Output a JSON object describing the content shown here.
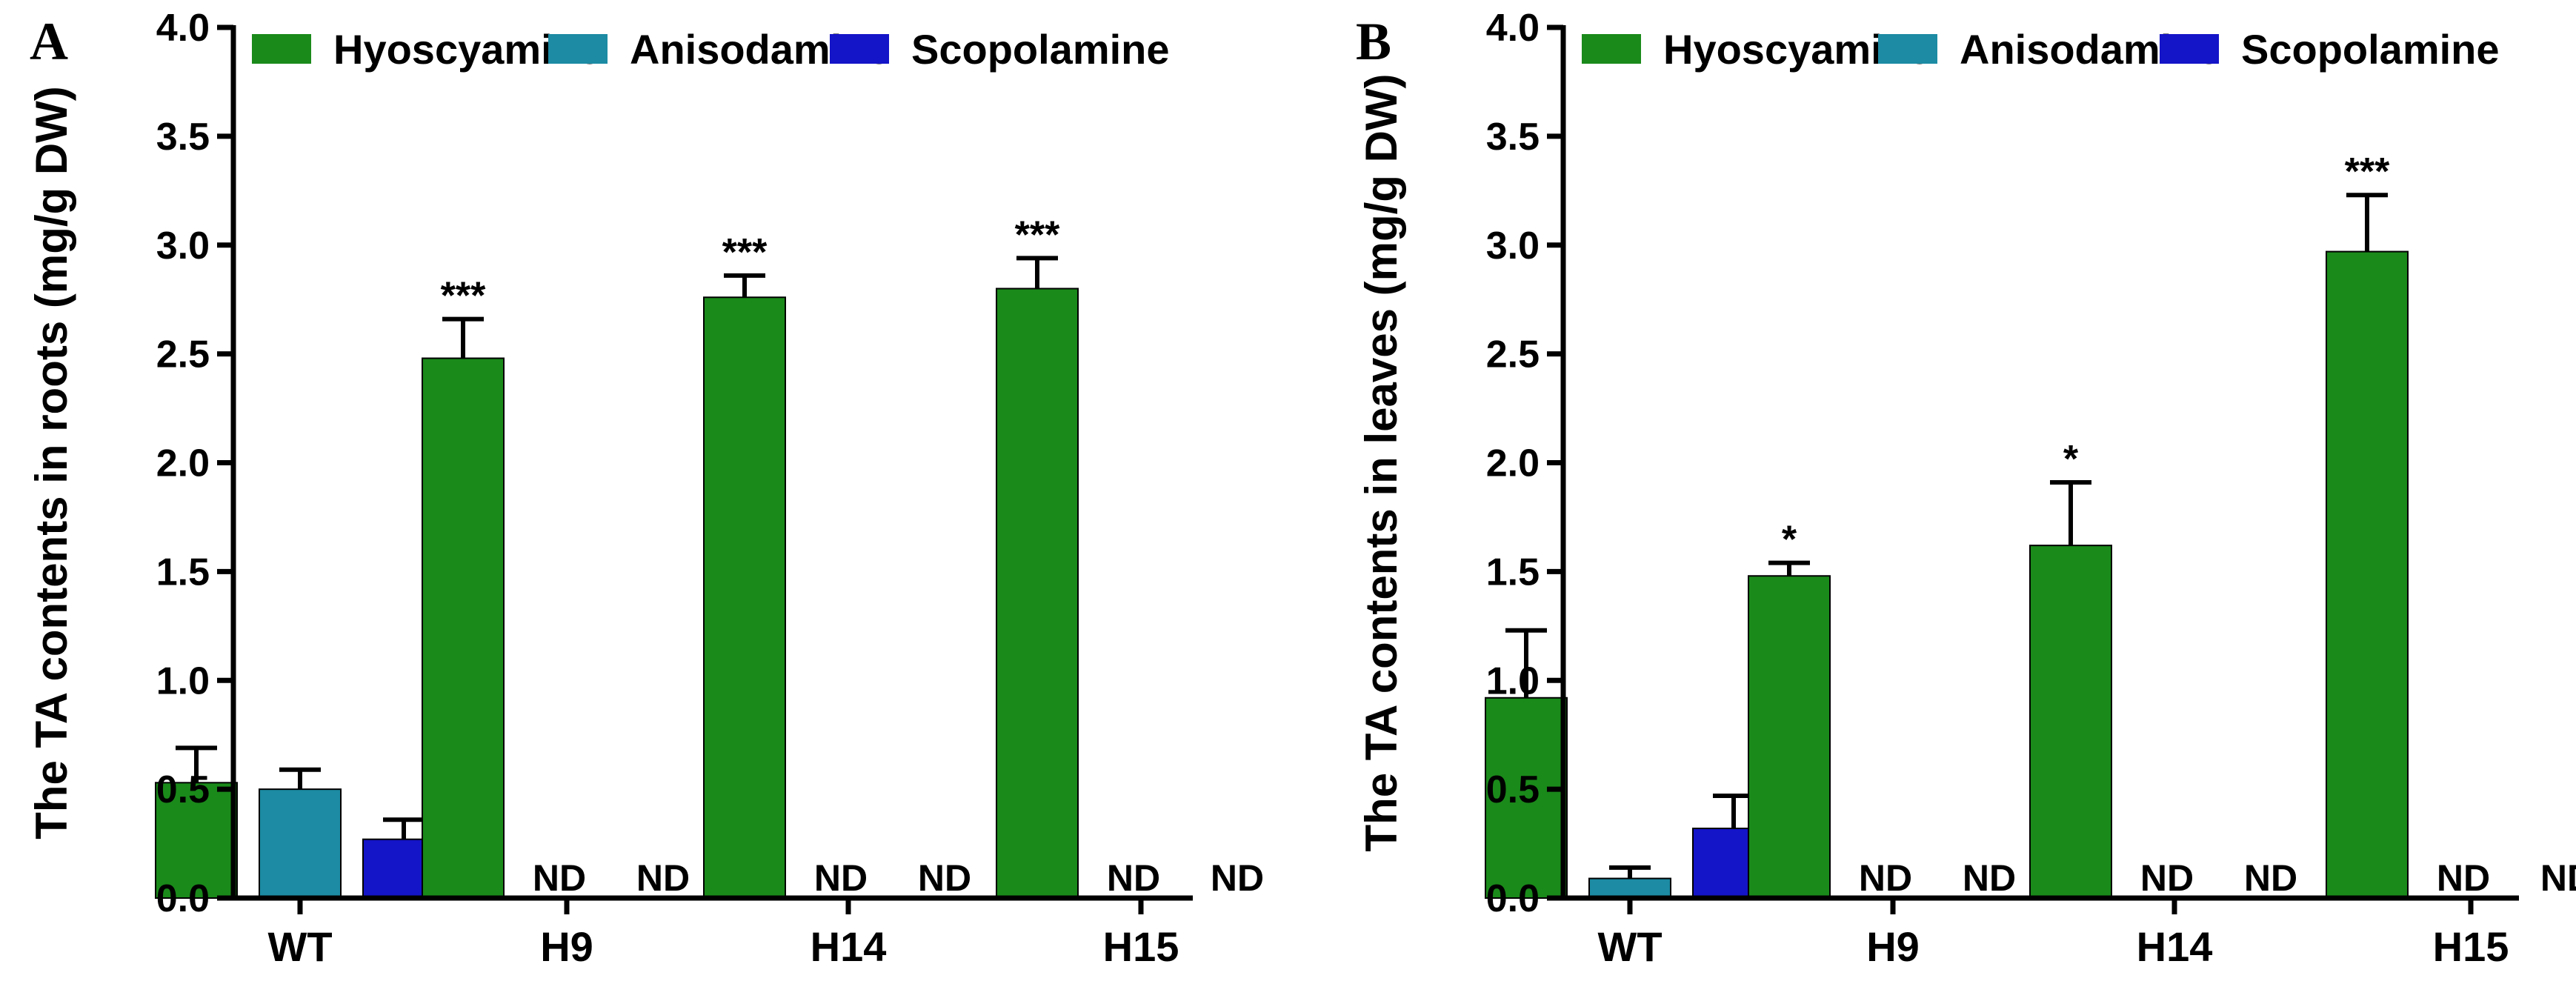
{
  "figure": {
    "panels": [
      "A",
      "B"
    ]
  },
  "chart_data": [
    {
      "panel": "A",
      "type": "bar",
      "title": "",
      "xlabel": "",
      "ylabel": "The TA contents in roots (mg/g DW)",
      "ylim": [
        0,
        4.0
      ],
      "yticks": [
        0.0,
        0.5,
        1.0,
        1.5,
        2.0,
        2.5,
        3.0,
        3.5,
        4.0
      ],
      "ytick_labels": [
        "0.0",
        "0.5",
        "1.0",
        "1.5",
        "2.0",
        "2.5",
        "3.0",
        "3.5",
        "4.0"
      ],
      "categories": [
        "WT",
        "H9",
        "H14",
        "H15"
      ],
      "legend_position": "top",
      "series": [
        {
          "name": "Hyoscyamine",
          "color": "#1a8a1a",
          "values": [
            0.53,
            2.48,
            2.76,
            2.8
          ],
          "errors": [
            0.16,
            0.18,
            0.1,
            0.14
          ],
          "labels": [
            "",
            "***",
            "***",
            "***"
          ]
        },
        {
          "name": "Anisodamine",
          "color": "#1c8ba3",
          "values": [
            0.5,
            null,
            null,
            null
          ],
          "errors": [
            0.09,
            null,
            null,
            null
          ],
          "labels": [
            "",
            "ND",
            "ND",
            "ND"
          ]
        },
        {
          "name": "Scopolamine",
          "color": "#1414c8",
          "values": [
            0.27,
            null,
            null,
            null
          ],
          "errors": [
            0.09,
            null,
            null,
            null
          ],
          "labels": [
            "",
            "ND",
            "ND",
            "ND"
          ]
        }
      ]
    },
    {
      "panel": "B",
      "type": "bar",
      "title": "",
      "xlabel": "",
      "ylabel": "The TA contents in leaves (mg/g DW)",
      "ylim": [
        0,
        4.0
      ],
      "yticks": [
        0.0,
        0.5,
        1.0,
        1.5,
        2.0,
        2.5,
        3.0,
        3.5,
        4.0
      ],
      "ytick_labels": [
        "0.0",
        "0.5",
        "1.0",
        "1.5",
        "2.0",
        "2.5",
        "3.0",
        "3.5",
        "4.0"
      ],
      "categories": [
        "WT",
        "H9",
        "H14",
        "H15"
      ],
      "legend_position": "top",
      "series": [
        {
          "name": "Hyoscyamine",
          "color": "#1a8a1a",
          "values": [
            0.92,
            1.48,
            1.62,
            2.97
          ],
          "errors": [
            0.31,
            0.06,
            0.29,
            0.26
          ],
          "labels": [
            "",
            "*",
            "*",
            "***"
          ]
        },
        {
          "name": "Anisodamine",
          "color": "#1c8ba3",
          "values": [
            0.09,
            null,
            null,
            null
          ],
          "errors": [
            0.05,
            null,
            null,
            null
          ],
          "labels": [
            "",
            "ND",
            "ND",
            "ND"
          ]
        },
        {
          "name": "Scopolamine",
          "color": "#1414c8",
          "values": [
            0.32,
            null,
            null,
            null
          ],
          "errors": [
            0.15,
            null,
            null,
            null
          ],
          "labels": [
            "",
            "ND",
            "ND",
            "ND"
          ]
        }
      ]
    }
  ]
}
